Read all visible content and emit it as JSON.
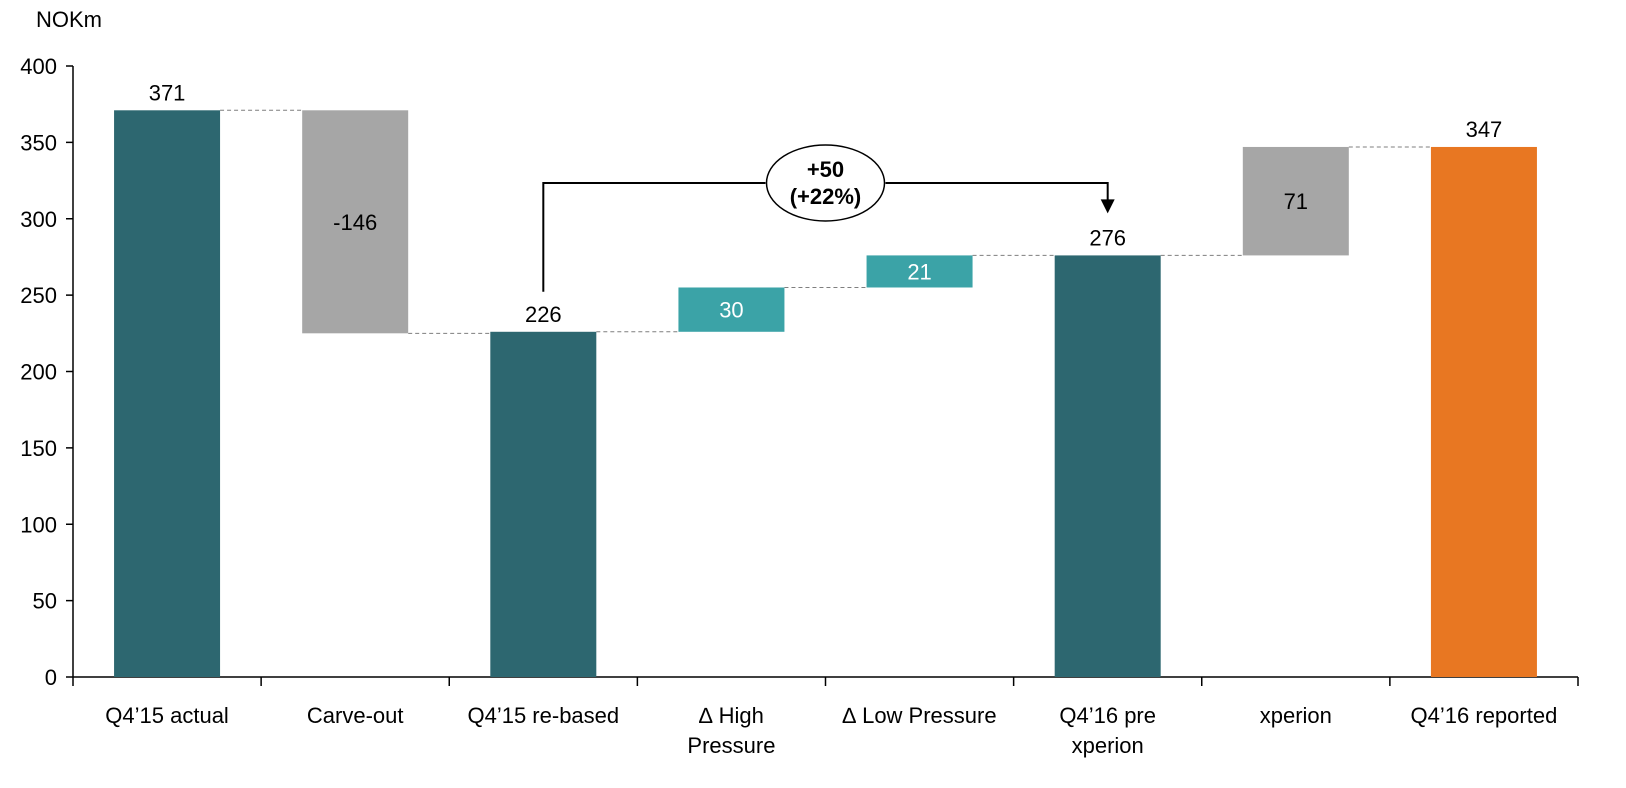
{
  "chart_data": {
    "type": "bar",
    "subtype": "waterfall",
    "unit_label": "NOKm",
    "ylim": [
      0,
      400
    ],
    "yticks": [
      0,
      50,
      100,
      150,
      200,
      250,
      300,
      350,
      400
    ],
    "grid": false,
    "categories": [
      "Q4’15 actual",
      "Carve-out",
      "Q4’15 re-based",
      "∆ High Pressure",
      "∆ Low Pressure",
      "Q4’16 pre xperion",
      "xperion",
      "Q4’16 reported"
    ],
    "category_lines": [
      [
        "Q4’15 actual"
      ],
      [
        "Carve-out"
      ],
      [
        "Q4’15 re-based"
      ],
      [
        "∆ High",
        "Pressure"
      ],
      [
        "∆ Low Pressure"
      ],
      [
        "Q4’16 pre",
        "xperion"
      ],
      [
        "xperion"
      ],
      [
        "Q4’16 reported"
      ]
    ],
    "bars": [
      {
        "category": "Q4’15 actual",
        "kind": "total",
        "start": 0,
        "end": 371,
        "label": "371",
        "color": "#2d6770"
      },
      {
        "category": "Carve-out",
        "kind": "delta",
        "start": 371,
        "end": 225,
        "label": "-146",
        "color": "#a6a6a6"
      },
      {
        "category": "Q4’15 re-based",
        "kind": "total",
        "start": 0,
        "end": 226,
        "label": "226",
        "color": "#2d6770"
      },
      {
        "category": "∆ High Pressure",
        "kind": "delta",
        "start": 226,
        "end": 255,
        "label": "30",
        "color": "#3ba3a7"
      },
      {
        "category": "∆ Low Pressure",
        "kind": "delta",
        "start": 255,
        "end": 276,
        "label": "21",
        "color": "#3ba3a7"
      },
      {
        "category": "Q4’16 pre xperion",
        "kind": "total",
        "start": 0,
        "end": 276,
        "label": "276",
        "color": "#2d6770"
      },
      {
        "category": "xperion",
        "kind": "delta",
        "start": 276,
        "end": 347,
        "label": "71",
        "color": "#a6a6a6"
      },
      {
        "category": "Q4’16 reported",
        "kind": "total",
        "start": 0,
        "end": 347,
        "label": "347",
        "color": "#e87722"
      }
    ],
    "annotation": {
      "from": "Q4’15 re-based",
      "to": "Q4’16 pre xperion",
      "line1": "+50",
      "line2": "(+22%)"
    }
  }
}
